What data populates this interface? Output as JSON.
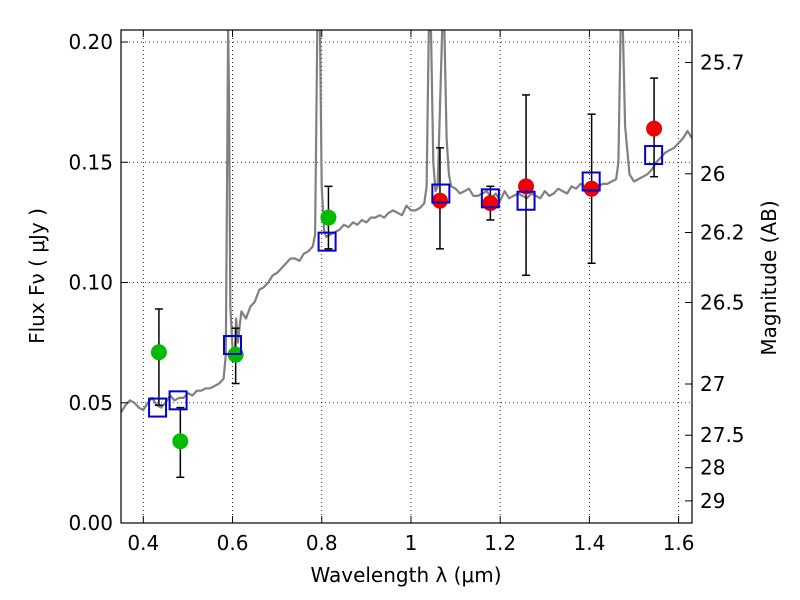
{
  "chart_data": {
    "type": "scatter",
    "xlabel": "Wavelength  λ (μm)",
    "ylabel": "Flux  Fν  ( μJy )",
    "ylabel_right": "Magnitude (AB)",
    "xlim": [
      0.35,
      1.63
    ],
    "ylim": [
      0.0,
      0.205
    ],
    "grid": true,
    "x_ticks": [
      {
        "value": 0.4,
        "label": "0.4"
      },
      {
        "value": 0.6,
        "label": "0.6"
      },
      {
        "value": 0.8,
        "label": "0.8"
      },
      {
        "value": 1.0,
        "label": "1"
      },
      {
        "value": 1.2,
        "label": "1.2"
      },
      {
        "value": 1.4,
        "label": "1.4"
      },
      {
        "value": 1.6,
        "label": "1.6"
      }
    ],
    "y_ticks": [
      {
        "value": 0.0,
        "label": "0.00"
      },
      {
        "value": 0.05,
        "label": "0.05"
      },
      {
        "value": 0.1,
        "label": "0.10"
      },
      {
        "value": 0.15,
        "label": "0.15"
      },
      {
        "value": 0.2,
        "label": "0.20"
      }
    ],
    "right_ticks": [
      {
        "label": "25.7",
        "flux": 0.1915
      },
      {
        "label": "26",
        "flux": 0.1452
      },
      {
        "label": "26.2",
        "flux": 0.1208
      },
      {
        "label": "26.5",
        "flux": 0.0917
      },
      {
        "label": "27",
        "flux": 0.0578
      },
      {
        "label": "27.5",
        "flux": 0.0365
      },
      {
        "label": "28",
        "flux": 0.023
      },
      {
        "label": "29",
        "flux": 0.0092
      }
    ],
    "spectrum": {
      "name": "model spectrum",
      "color": "#808080",
      "x": [
        0.35,
        0.36,
        0.37,
        0.38,
        0.39,
        0.4,
        0.41,
        0.42,
        0.43,
        0.44,
        0.45,
        0.46,
        0.47,
        0.48,
        0.49,
        0.5,
        0.51,
        0.52,
        0.53,
        0.54,
        0.55,
        0.56,
        0.57,
        0.58,
        0.585,
        0.588,
        0.59,
        0.592,
        0.595,
        0.6,
        0.605,
        0.608,
        0.612,
        0.616,
        0.62,
        0.63,
        0.64,
        0.65,
        0.66,
        0.67,
        0.68,
        0.69,
        0.7,
        0.71,
        0.72,
        0.73,
        0.74,
        0.75,
        0.76,
        0.77,
        0.78,
        0.785,
        0.79,
        0.793,
        0.796,
        0.8,
        0.805,
        0.81,
        0.82,
        0.83,
        0.84,
        0.85,
        0.86,
        0.87,
        0.88,
        0.89,
        0.9,
        0.91,
        0.92,
        0.93,
        0.94,
        0.95,
        0.96,
        0.97,
        0.98,
        0.99,
        1.0,
        1.01,
        1.02,
        1.03,
        1.035,
        1.04,
        1.045,
        1.05,
        1.055,
        1.06,
        1.07,
        1.075,
        1.08,
        1.085,
        1.09,
        1.1,
        1.11,
        1.12,
        1.13,
        1.14,
        1.15,
        1.16,
        1.17,
        1.18,
        1.19,
        1.2,
        1.21,
        1.22,
        1.23,
        1.24,
        1.25,
        1.26,
        1.27,
        1.28,
        1.29,
        1.3,
        1.31,
        1.32,
        1.33,
        1.34,
        1.35,
        1.36,
        1.37,
        1.38,
        1.39,
        1.4,
        1.41,
        1.42,
        1.43,
        1.44,
        1.45,
        1.46,
        1.465,
        1.47,
        1.475,
        1.48,
        1.49,
        1.5,
        1.51,
        1.52,
        1.53,
        1.54,
        1.55,
        1.56,
        1.57,
        1.58,
        1.59,
        1.6,
        1.61,
        1.62,
        1.63
      ],
      "y": [
        0.046,
        0.049,
        0.051,
        0.05,
        0.048,
        0.047,
        0.05,
        0.052,
        0.049,
        0.048,
        0.05,
        0.053,
        0.051,
        0.052,
        0.052,
        0.054,
        0.053,
        0.055,
        0.055,
        0.056,
        0.056,
        0.057,
        0.058,
        0.06,
        0.07,
        0.15,
        0.205,
        0.18,
        0.09,
        0.073,
        0.07,
        0.085,
        0.075,
        0.082,
        0.088,
        0.085,
        0.09,
        0.092,
        0.097,
        0.098,
        0.1,
        0.103,
        0.104,
        0.106,
        0.108,
        0.11,
        0.11,
        0.109,
        0.112,
        0.113,
        0.115,
        0.12,
        0.205,
        0.205,
        0.205,
        0.14,
        0.122,
        0.119,
        0.12,
        0.121,
        0.122,
        0.124,
        0.123,
        0.125,
        0.124,
        0.126,
        0.125,
        0.127,
        0.127,
        0.128,
        0.127,
        0.129,
        0.13,
        0.129,
        0.128,
        0.132,
        0.13,
        0.13,
        0.131,
        0.133,
        0.14,
        0.205,
        0.205,
        0.15,
        0.138,
        0.14,
        0.205,
        0.205,
        0.16,
        0.145,
        0.14,
        0.139,
        0.137,
        0.138,
        0.139,
        0.136,
        0.136,
        0.137,
        0.138,
        0.135,
        0.137,
        0.134,
        0.138,
        0.135,
        0.136,
        0.137,
        0.136,
        0.135,
        0.137,
        0.136,
        0.135,
        0.138,
        0.136,
        0.137,
        0.139,
        0.138,
        0.137,
        0.14,
        0.139,
        0.141,
        0.14,
        0.14,
        0.139,
        0.14,
        0.141,
        0.141,
        0.142,
        0.143,
        0.15,
        0.205,
        0.205,
        0.165,
        0.145,
        0.142,
        0.143,
        0.144,
        0.145,
        0.147,
        0.15,
        0.152,
        0.154,
        0.155,
        0.156,
        0.158,
        0.16,
        0.163,
        0.16
      ]
    },
    "observed_points": [
      {
        "x": 0.435,
        "y": 0.071,
        "err_low": 0.049,
        "err_high": 0.089,
        "color": "#00bb00"
      },
      {
        "x": 0.483,
        "y": 0.034,
        "err_low": 0.019,
        "err_high": 0.048,
        "color": "#00bb00"
      },
      {
        "x": 0.607,
        "y": 0.07,
        "err_low": 0.058,
        "err_high": 0.081,
        "color": "#00bb00"
      },
      {
        "x": 0.815,
        "y": 0.127,
        "err_low": 0.114,
        "err_high": 0.14,
        "color": "#00bb00"
      },
      {
        "x": 1.065,
        "y": 0.134,
        "err_low": 0.114,
        "err_high": 0.156,
        "color": "#ee0000"
      },
      {
        "x": 1.178,
        "y": 0.133,
        "err_low": 0.126,
        "err_high": 0.14,
        "color": "#ee0000"
      },
      {
        "x": 1.258,
        "y": 0.14,
        "err_low": 0.103,
        "err_high": 0.178,
        "color": "#ee0000"
      },
      {
        "x": 1.405,
        "y": 0.139,
        "err_low": 0.108,
        "err_high": 0.17,
        "color": "#ee0000"
      },
      {
        "x": 1.545,
        "y": 0.164,
        "err_low": 0.144,
        "err_high": 0.185,
        "color": "#ee0000"
      }
    ],
    "model_points": [
      {
        "x": 0.432,
        "y": 0.048
      },
      {
        "x": 0.478,
        "y": 0.051
      },
      {
        "x": 0.6,
        "y": 0.074
      },
      {
        "x": 0.812,
        "y": 0.117
      },
      {
        "x": 1.067,
        "y": 0.137
      },
      {
        "x": 1.178,
        "y": 0.135
      },
      {
        "x": 1.258,
        "y": 0.134
      },
      {
        "x": 1.404,
        "y": 0.142
      },
      {
        "x": 1.544,
        "y": 0.153
      }
    ],
    "model_marker_color": "#0000cc"
  }
}
